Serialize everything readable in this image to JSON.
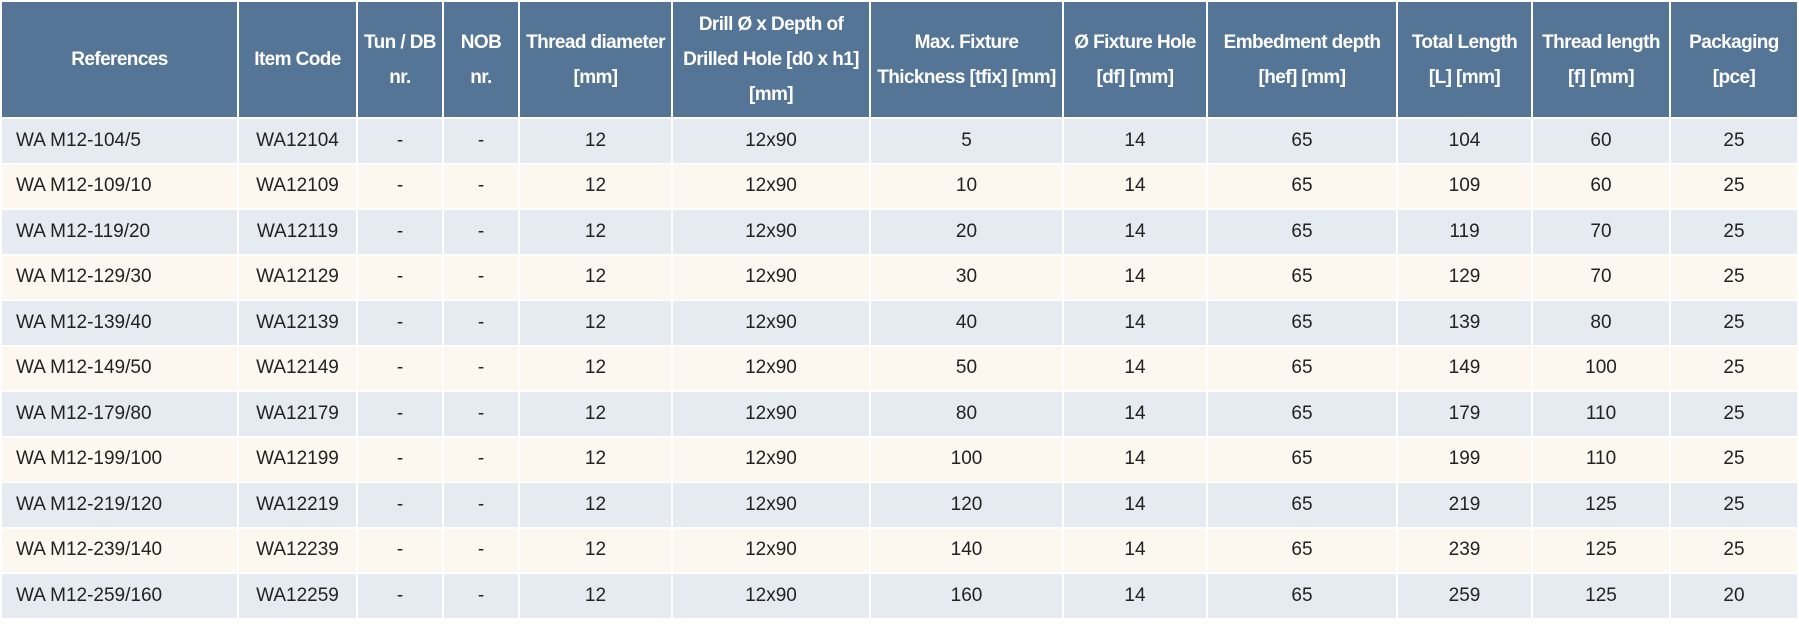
{
  "table": {
    "headers": [
      "References",
      "Item Code",
      "Tun / DB nr.",
      "NOB nr.",
      "Thread diameter [mm]",
      "Drill Ø x Depth of Drilled Hole [d0 x h1] [mm]",
      "Max. Fixture Thickness [tfix] [mm]",
      "Ø Fixture Hole [df] [mm]",
      "Embedment depth [hef] [mm]",
      "Total Length [L] [mm]",
      "Thread length [f] [mm]",
      "Packaging [pce]"
    ],
    "rows": [
      [
        "WA M12-104/5",
        "WA12104",
        "-",
        "-",
        "12",
        "12x90",
        "5",
        "14",
        "65",
        "104",
        "60",
        "25"
      ],
      [
        "WA M12-109/10",
        "WA12109",
        "-",
        "-",
        "12",
        "12x90",
        "10",
        "14",
        "65",
        "109",
        "60",
        "25"
      ],
      [
        "WA M12-119/20",
        "WA12119",
        "-",
        "-",
        "12",
        "12x90",
        "20",
        "14",
        "65",
        "119",
        "70",
        "25"
      ],
      [
        "WA M12-129/30",
        "WA12129",
        "-",
        "-",
        "12",
        "12x90",
        "30",
        "14",
        "65",
        "129",
        "70",
        "25"
      ],
      [
        "WA M12-139/40",
        "WA12139",
        "-",
        "-",
        "12",
        "12x90",
        "40",
        "14",
        "65",
        "139",
        "80",
        "25"
      ],
      [
        "WA M12-149/50",
        "WA12149",
        "-",
        "-",
        "12",
        "12x90",
        "50",
        "14",
        "65",
        "149",
        "100",
        "25"
      ],
      [
        "WA M12-179/80",
        "WA12179",
        "-",
        "-",
        "12",
        "12x90",
        "80",
        "14",
        "65",
        "179",
        "110",
        "25"
      ],
      [
        "WA M12-199/100",
        "WA12199",
        "-",
        "-",
        "12",
        "12x90",
        "100",
        "14",
        "65",
        "199",
        "110",
        "25"
      ],
      [
        "WA M12-219/120",
        "WA12219",
        "-",
        "-",
        "12",
        "12x90",
        "120",
        "14",
        "65",
        "219",
        "125",
        "25"
      ],
      [
        "WA M12-239/140",
        "WA12239",
        "-",
        "-",
        "12",
        "12x90",
        "140",
        "14",
        "65",
        "239",
        "125",
        "25"
      ],
      [
        "WA M12-259/160",
        "WA12259",
        "-",
        "-",
        "12",
        "12x90",
        "160",
        "14",
        "65",
        "259",
        "125",
        "20"
      ]
    ]
  }
}
